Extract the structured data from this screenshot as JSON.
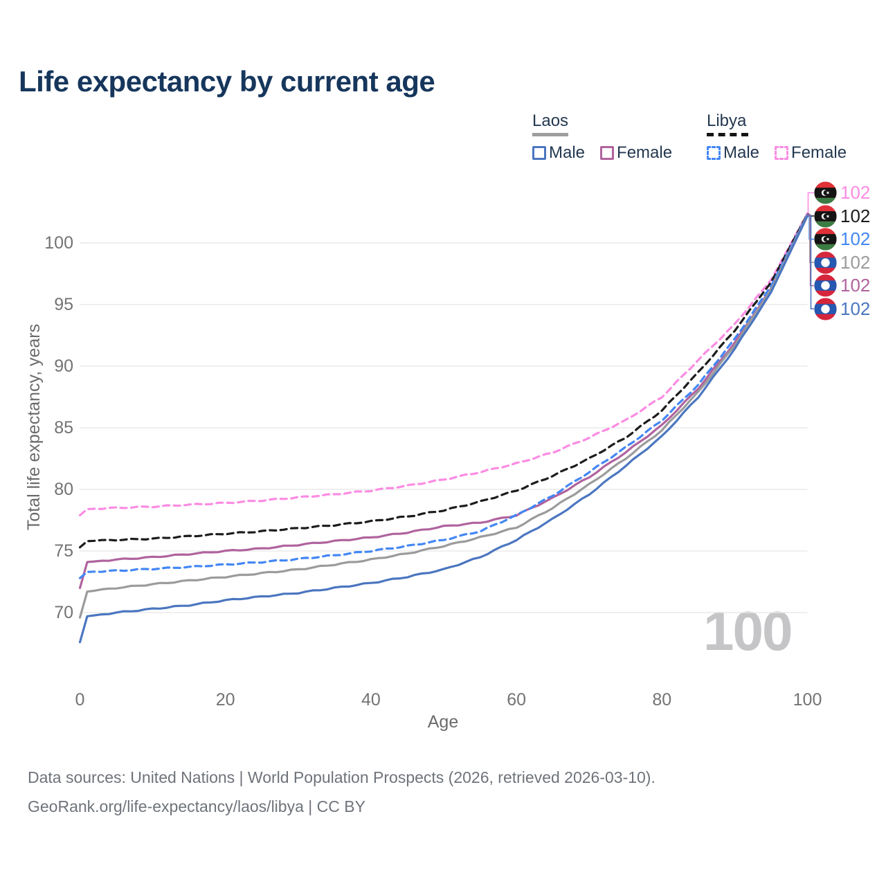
{
  "title": "Life expectancy by current age",
  "age_indicator": "100",
  "legend": {
    "groups": [
      {
        "name": "Laos",
        "line_style": "solid",
        "underline_color": "#9e9e9e",
        "items": [
          {
            "label": "Male",
            "color": "#4b76c0"
          },
          {
            "label": "Female",
            "color": "#b0639e"
          }
        ]
      },
      {
        "name": "Libya",
        "line_style": "dashed",
        "underline_color": "#151515",
        "items": [
          {
            "label": "Male",
            "color": "#4387f4"
          },
          {
            "label": "Female",
            "color": "#fb8ce3"
          }
        ]
      }
    ]
  },
  "footer": {
    "line1": "Data sources: United Nations | World Population Prospects (2026, retrieved 2026-03-10).",
    "line2": "GeoRank.org/life-expectancy/laos/libya | CC BY"
  },
  "flags": {
    "laos": {
      "red": "#d6263b",
      "blue": "#2558b0",
      "disc": "#ffffff"
    },
    "libya": {
      "red": "#e03038",
      "black": "#141414",
      "green": "#3a7d44",
      "white": "#ffffff"
    }
  },
  "chart_data": {
    "type": "line",
    "title": "Life expectancy by current age",
    "xlabel": "Age",
    "ylabel": "Total life expectancy, years",
    "x_ticks": [
      0,
      20,
      40,
      60,
      80,
      100
    ],
    "y_ticks": [
      70,
      75,
      80,
      85,
      90,
      95,
      100
    ],
    "xlim": [
      0,
      100
    ],
    "ylim": [
      66.5,
      103.5
    ],
    "grid": "horizontal",
    "legend_position": "top-right",
    "ages": [
      0,
      1,
      5,
      10,
      15,
      20,
      25,
      30,
      35,
      40,
      45,
      50,
      55,
      60,
      65,
      70,
      75,
      80,
      85,
      90,
      95,
      100
    ],
    "series": [
      {
        "id": "laos_male",
        "country": "Laos",
        "sex": "Male",
        "color": "#4b76c0",
        "dashed": false,
        "end_label": "102",
        "flag": "laos",
        "values": [
          67.6,
          69.7,
          70.0,
          70.3,
          70.6,
          71.0,
          71.3,
          71.6,
          72.0,
          72.4,
          72.9,
          73.5,
          74.5,
          75.9,
          77.6,
          79.6,
          81.9,
          84.3,
          87.5,
          91.4,
          96.0,
          102.2
        ]
      },
      {
        "id": "laos_female",
        "country": "Laos",
        "sex": "Female",
        "color": "#b0639e",
        "dashed": false,
        "end_label": "102",
        "flag": "laos",
        "values": [
          72.0,
          74.1,
          74.3,
          74.5,
          74.75,
          75.0,
          75.2,
          75.5,
          75.8,
          76.1,
          76.5,
          77.0,
          77.3,
          77.9,
          79.3,
          81.0,
          83.0,
          85.2,
          88.2,
          91.9,
          96.3,
          102.3
        ]
      },
      {
        "id": "laos_both",
        "country": "Laos",
        "sex": "Both sexes",
        "color": "#9b9b9b",
        "dashed": false,
        "end_label": "102",
        "flag": "laos",
        "values": [
          69.6,
          71.7,
          72.0,
          72.3,
          72.6,
          72.9,
          73.2,
          73.5,
          73.9,
          74.3,
          74.8,
          75.4,
          76.1,
          76.9,
          78.5,
          80.4,
          82.5,
          84.8,
          87.9,
          91.7,
          96.2,
          102.25
        ]
      },
      {
        "id": "libya_male",
        "country": "Libya",
        "sex": "Male",
        "color": "#4387f4",
        "dashed": true,
        "end_label": "102",
        "flag": "libya",
        "values": [
          72.8,
          73.3,
          73.4,
          73.55,
          73.7,
          73.9,
          74.1,
          74.35,
          74.65,
          75.0,
          75.4,
          75.9,
          76.6,
          77.9,
          79.5,
          81.4,
          83.4,
          85.6,
          88.5,
          92.2,
          96.5,
          102.3
        ]
      },
      {
        "id": "libya_both",
        "country": "Libya",
        "sex": "Both sexes",
        "color": "#1c1c1c",
        "dashed": true,
        "end_label": "102",
        "flag": "libya",
        "values": [
          75.3,
          75.8,
          75.9,
          76.0,
          76.2,
          76.4,
          76.6,
          76.85,
          77.1,
          77.4,
          77.8,
          78.3,
          79.0,
          79.9,
          81.1,
          82.5,
          84.2,
          86.4,
          89.5,
          92.9,
          96.8,
          102.35
        ]
      },
      {
        "id": "libya_female",
        "country": "Libya",
        "sex": "Female",
        "color": "#fb8ce3",
        "dashed": true,
        "end_label": "102",
        "flag": "libya",
        "values": [
          77.9,
          78.4,
          78.5,
          78.6,
          78.75,
          78.9,
          79.1,
          79.35,
          79.6,
          79.9,
          80.3,
          80.8,
          81.4,
          82.1,
          83.0,
          84.2,
          85.6,
          87.5,
          90.5,
          93.4,
          97.0,
          102.4
        ]
      }
    ],
    "draw_order": [
      "libya_female",
      "libya_both",
      "laos_female",
      "libya_male",
      "laos_both",
      "laos_male"
    ],
    "end_order": [
      "libya_female",
      "libya_both",
      "libya_male",
      "laos_both",
      "laos_female",
      "laos_male"
    ]
  }
}
